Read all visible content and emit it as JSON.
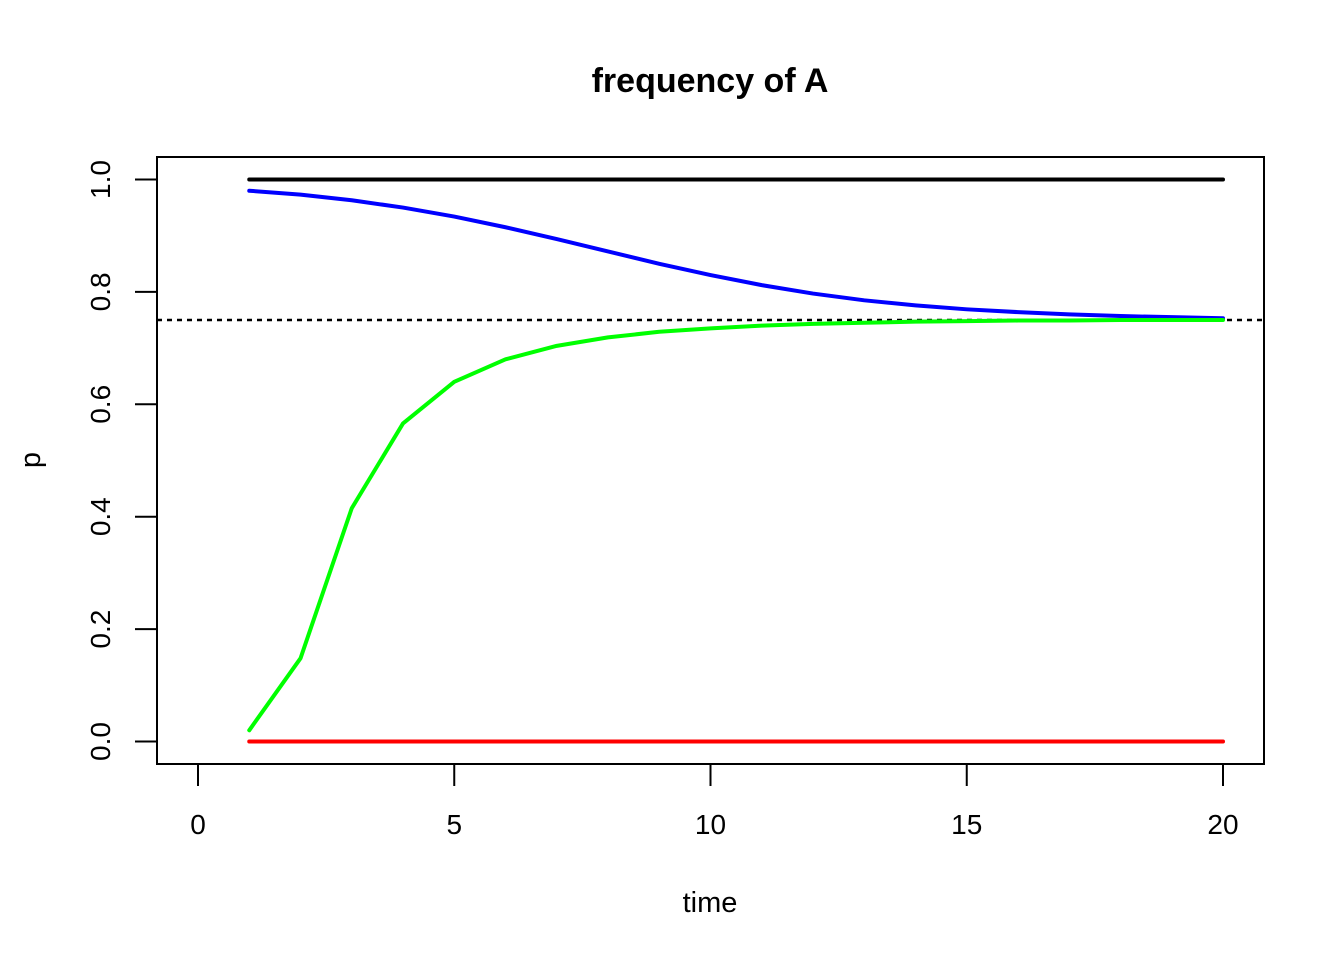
{
  "chart_data": {
    "type": "line",
    "title": "frequency of A",
    "xlabel": "time",
    "ylabel": "p",
    "xlim": [
      -0.8,
      20.8
    ],
    "ylim": [
      -0.04,
      1.04
    ],
    "x_ticks": [
      0,
      5,
      10,
      15,
      20
    ],
    "x_tick_labels": [
      "0",
      "5",
      "10",
      "15",
      "20"
    ],
    "y_ticks": [
      0.0,
      0.2,
      0.4,
      0.6,
      0.8,
      1.0
    ],
    "y_tick_labels": [
      "0.0",
      "0.2",
      "0.4",
      "0.6",
      "0.8",
      "1.0"
    ],
    "grid": false,
    "legend": "none",
    "x": [
      1,
      2,
      3,
      4,
      5,
      6,
      7,
      8,
      9,
      10,
      11,
      12,
      13,
      14,
      15,
      16,
      17,
      18,
      19,
      20
    ],
    "series": [
      {
        "color": "#000000",
        "values": [
          1,
          1,
          1,
          1,
          1,
          1,
          1,
          1,
          1,
          1,
          1,
          1,
          1,
          1,
          1,
          1,
          1,
          1,
          1,
          1
        ]
      },
      {
        "color": "#0000ff",
        "values": [
          0.98,
          0.973,
          0.963,
          0.95,
          0.934,
          0.915,
          0.894,
          0.872,
          0.85,
          0.83,
          0.812,
          0.797,
          0.785,
          0.776,
          0.769,
          0.764,
          0.76,
          0.757,
          0.755,
          0.753
        ]
      },
      {
        "color": "#00ff00",
        "values": [
          0.02,
          0.148,
          0.415,
          0.566,
          0.64,
          0.68,
          0.704,
          0.719,
          0.729,
          0.735,
          0.74,
          0.743,
          0.745,
          0.747,
          0.748,
          0.749,
          0.749,
          0.75,
          0.75,
          0.75
        ]
      },
      {
        "color": "#ff0000",
        "values": [
          0,
          0,
          0,
          0,
          0,
          0,
          0,
          0,
          0,
          0,
          0,
          0,
          0,
          0,
          0,
          0,
          0,
          0,
          0,
          0
        ]
      }
    ],
    "reference_lines": [
      {
        "orientation": "horizontal",
        "y": 0.75,
        "style": "dotted",
        "color": "#000000"
      }
    ]
  }
}
